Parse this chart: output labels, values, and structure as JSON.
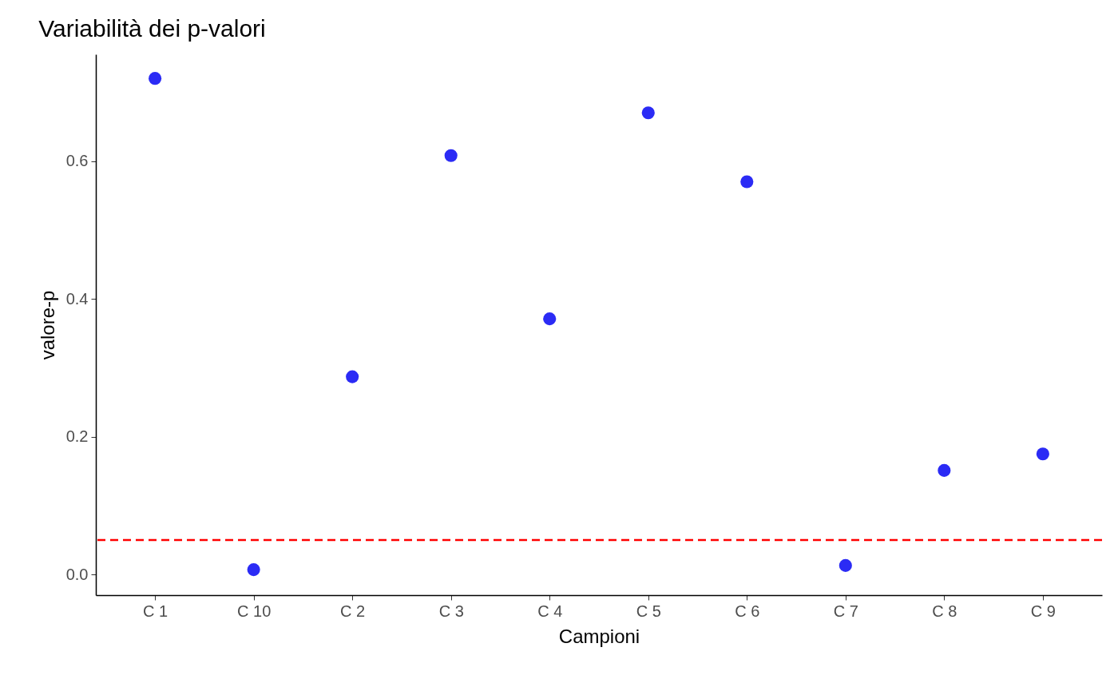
{
  "chart_data": {
    "type": "scatter",
    "title": "Variabilità dei p-valori",
    "xlabel": "Campioni",
    "ylabel": "valore-p",
    "categories": [
      "C 1",
      "C 10",
      "C 2",
      "C 3",
      "C 4",
      "C 5",
      "C 6",
      "C 7",
      "C 8",
      "C 9"
    ],
    "series": [
      {
        "color": "#2b2bf5",
        "values": [
          0.72,
          0.007,
          0.287,
          0.608,
          0.371,
          0.67,
          0.57,
          0.013,
          0.151,
          0.175
        ]
      }
    ],
    "ylim": [
      -0.03,
      0.755
    ],
    "yticks": [
      {
        "value": 0,
        "label": "0.0"
      },
      0.2,
      0.4,
      0.6
    ],
    "ref_lines": [
      {
        "axis": "y",
        "value": 0.05,
        "color": "#ff0000",
        "line_style": "dashed"
      }
    ],
    "marker": "circle",
    "grid": false,
    "legend": false
  }
}
